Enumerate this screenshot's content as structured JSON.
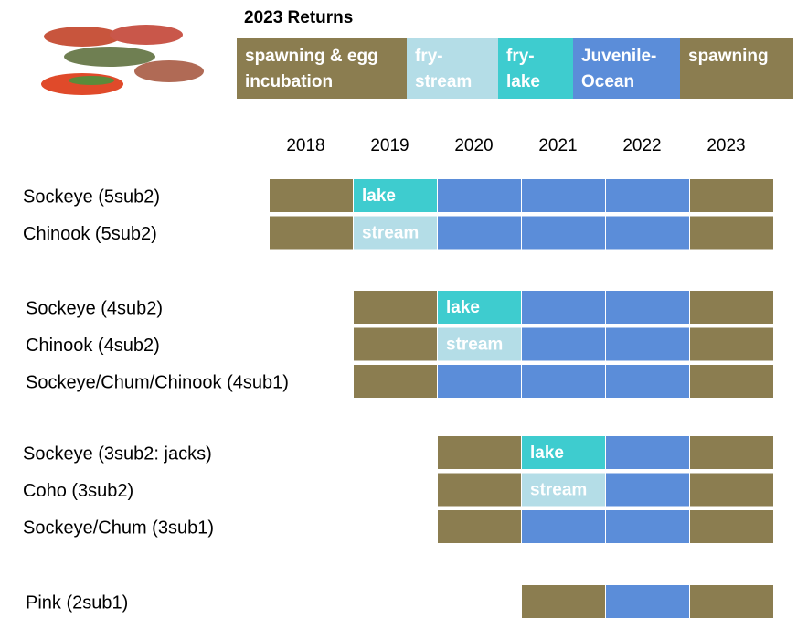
{
  "title": "2023 Returns",
  "legend": [
    {
      "label": "spawning & egg incubation",
      "color": "#8b7d50"
    },
    {
      "label": "fry-stream",
      "color": "#b4dde7"
    },
    {
      "label": "fry-lake",
      "color": "#3ecccf"
    },
    {
      "label": "Juvenile-Ocean",
      "color": "#5b8dd9"
    },
    {
      "label": "spawning",
      "color": "#8b7d50"
    }
  ],
  "years": [
    "2018",
    "2019",
    "2020",
    "2021",
    "2022",
    "2023"
  ],
  "groups": [
    {
      "rows": [
        {
          "label": "Sockeye (5sub2)",
          "cells": [
            {
              "color": "#8b7d50"
            },
            {
              "color": "#3ecccf",
              "text": "lake"
            },
            {
              "color": "#5b8dd9"
            },
            {
              "color": "#5b8dd9"
            },
            {
              "color": "#5b8dd9"
            },
            {
              "color": "#8b7d50"
            }
          ]
        },
        {
          "label": "Chinook (5sub2)",
          "cells": [
            {
              "color": "#8b7d50"
            },
            {
              "color": "#b4dde7",
              "text": "stream"
            },
            {
              "color": "#5b8dd9"
            },
            {
              "color": "#5b8dd9"
            },
            {
              "color": "#5b8dd9"
            },
            {
              "color": "#8b7d50"
            }
          ]
        }
      ]
    },
    {
      "rows": [
        {
          "label": "Sockeye (4sub2)",
          "cells": [
            null,
            {
              "color": "#8b7d50"
            },
            {
              "color": "#3ecccf",
              "text": "lake"
            },
            {
              "color": "#5b8dd9"
            },
            {
              "color": "#5b8dd9"
            },
            {
              "color": "#8b7d50"
            }
          ]
        },
        {
          "label": "Chinook (4sub2)",
          "cells": [
            null,
            {
              "color": "#8b7d50"
            },
            {
              "color": "#b4dde7",
              "text": "stream"
            },
            {
              "color": "#5b8dd9"
            },
            {
              "color": "#5b8dd9"
            },
            {
              "color": "#8b7d50"
            }
          ]
        },
        {
          "label": "Sockeye/Chum/Chinook (4sub1)",
          "cells": [
            null,
            {
              "color": "#8b7d50"
            },
            {
              "color": "#5b8dd9"
            },
            {
              "color": "#5b8dd9"
            },
            {
              "color": "#5b8dd9"
            },
            {
              "color": "#8b7d50"
            }
          ]
        }
      ]
    },
    {
      "rows": [
        {
          "label": "Sockeye (3sub2: jacks)",
          "cells": [
            null,
            null,
            {
              "color": "#8b7d50"
            },
            {
              "color": "#3ecccf",
              "text": "lake"
            },
            {
              "color": "#5b8dd9"
            },
            {
              "color": "#8b7d50"
            }
          ]
        },
        {
          "label": "Coho (3sub2)",
          "cells": [
            null,
            null,
            {
              "color": "#8b7d50"
            },
            {
              "color": "#b4dde7",
              "text": "stream"
            },
            {
              "color": "#5b8dd9"
            },
            {
              "color": "#8b7d50"
            }
          ]
        },
        {
          "label": "Sockeye/Chum (3sub1)",
          "cells": [
            null,
            null,
            {
              "color": "#8b7d50"
            },
            {
              "color": "#5b8dd9"
            },
            {
              "color": "#5b8dd9"
            },
            {
              "color": "#8b7d50"
            }
          ]
        }
      ]
    },
    {
      "rows": [
        {
          "label": "Pink (2sub1)",
          "cells": [
            null,
            null,
            null,
            {
              "color": "#8b7d50"
            },
            {
              "color": "#5b8dd9"
            },
            {
              "color": "#8b7d50"
            }
          ]
        }
      ]
    }
  ]
}
